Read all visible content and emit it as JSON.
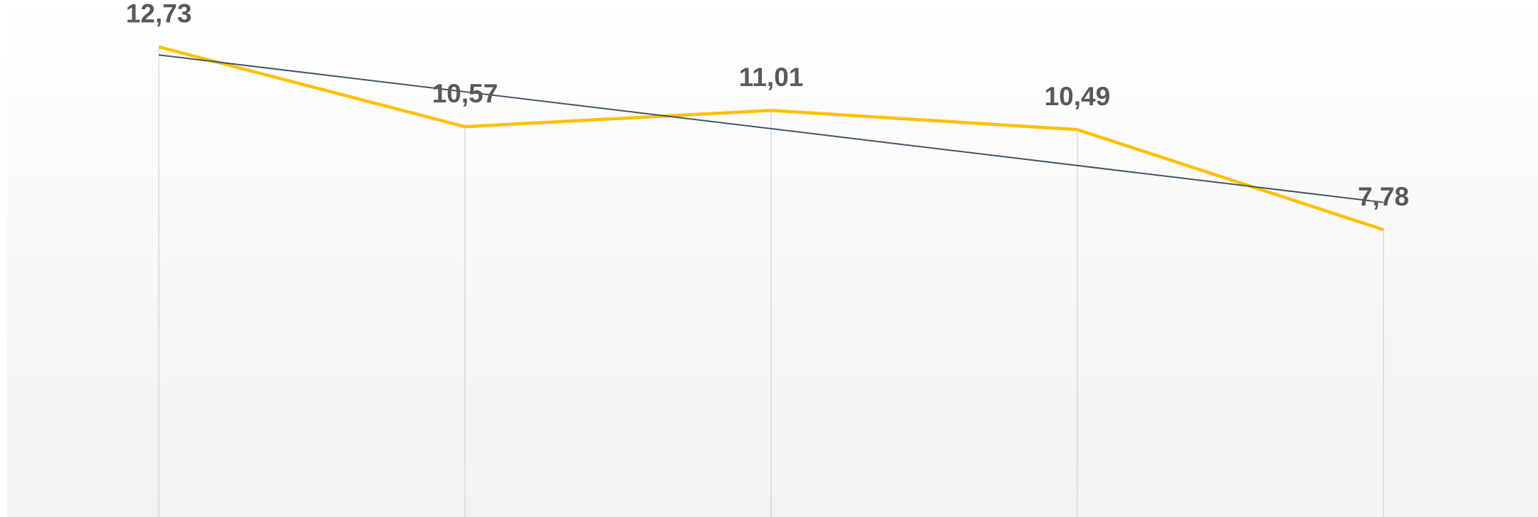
{
  "chart_data": {
    "type": "line",
    "categories": [
      null,
      null,
      null,
      null,
      null
    ],
    "values": [
      12.73,
      10.57,
      11.01,
      10.49,
      7.78
    ],
    "value_labels": [
      "12,73",
      "10,57",
      "11,01",
      "10,49",
      "7,78"
    ],
    "color": "#ffc000",
    "ylim": [
      0,
      14
    ],
    "drop_lines": true,
    "trendline": {
      "type": "linear",
      "color": "#44546a"
    }
  }
}
